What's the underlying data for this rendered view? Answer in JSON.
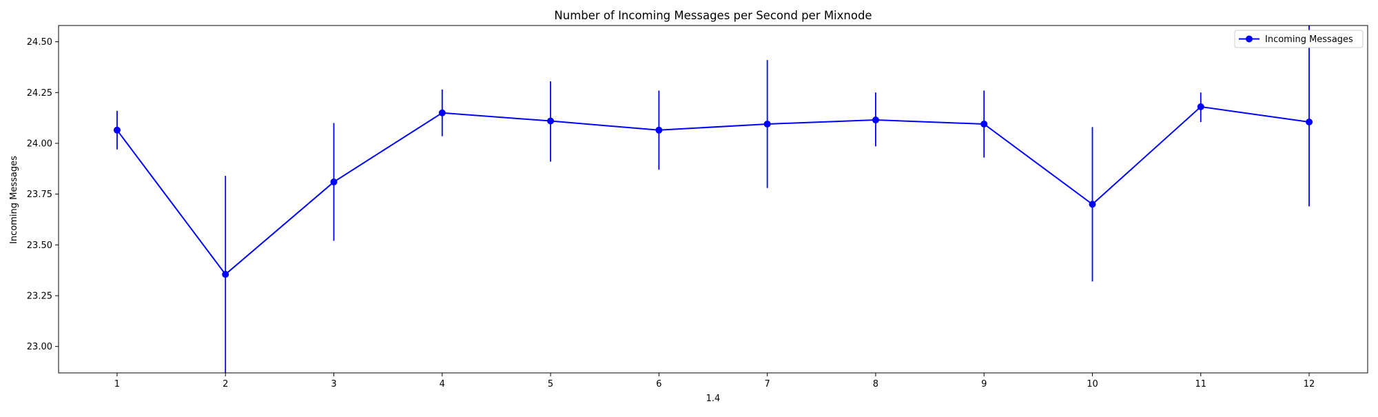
{
  "chart_data": {
    "type": "line",
    "title": "Number of Incoming Messages per Second per Mixnode",
    "xlabel": "1.4",
    "ylabel": "Incoming Messages",
    "x": [
      1,
      2,
      3,
      4,
      5,
      6,
      7,
      8,
      9,
      10,
      11,
      12
    ],
    "x_tick_labels": [
      "1",
      "2",
      "3",
      "4",
      "5",
      "6",
      "7",
      "8",
      "9",
      "10",
      "11",
      "12"
    ],
    "y_ticks": [
      23.0,
      23.25,
      23.5,
      23.75,
      24.0,
      24.25,
      24.5
    ],
    "y_tick_labels": [
      "23.00",
      "23.25",
      "23.50",
      "23.75",
      "24.00",
      "24.25",
      "24.50"
    ],
    "xlim": [
      0.46,
      12.54
    ],
    "ylim": [
      22.87,
      24.58
    ],
    "grid": false,
    "legend_position": "top-right",
    "series": [
      {
        "name": "Incoming Messages",
        "color": "#0000ff",
        "marker": "circle",
        "values": [
          24.065,
          23.355,
          23.81,
          24.15,
          24.11,
          24.065,
          24.095,
          24.115,
          24.095,
          23.7,
          24.18,
          24.105
        ],
        "error_low": [
          23.97,
          22.87,
          23.52,
          24.035,
          23.91,
          23.87,
          23.78,
          23.985,
          23.93,
          23.32,
          24.105,
          23.69
        ],
        "error_high": [
          24.16,
          23.84,
          24.1,
          24.265,
          24.305,
          24.26,
          24.41,
          24.25,
          24.26,
          24.08,
          24.25,
          24.58
        ]
      }
    ]
  }
}
